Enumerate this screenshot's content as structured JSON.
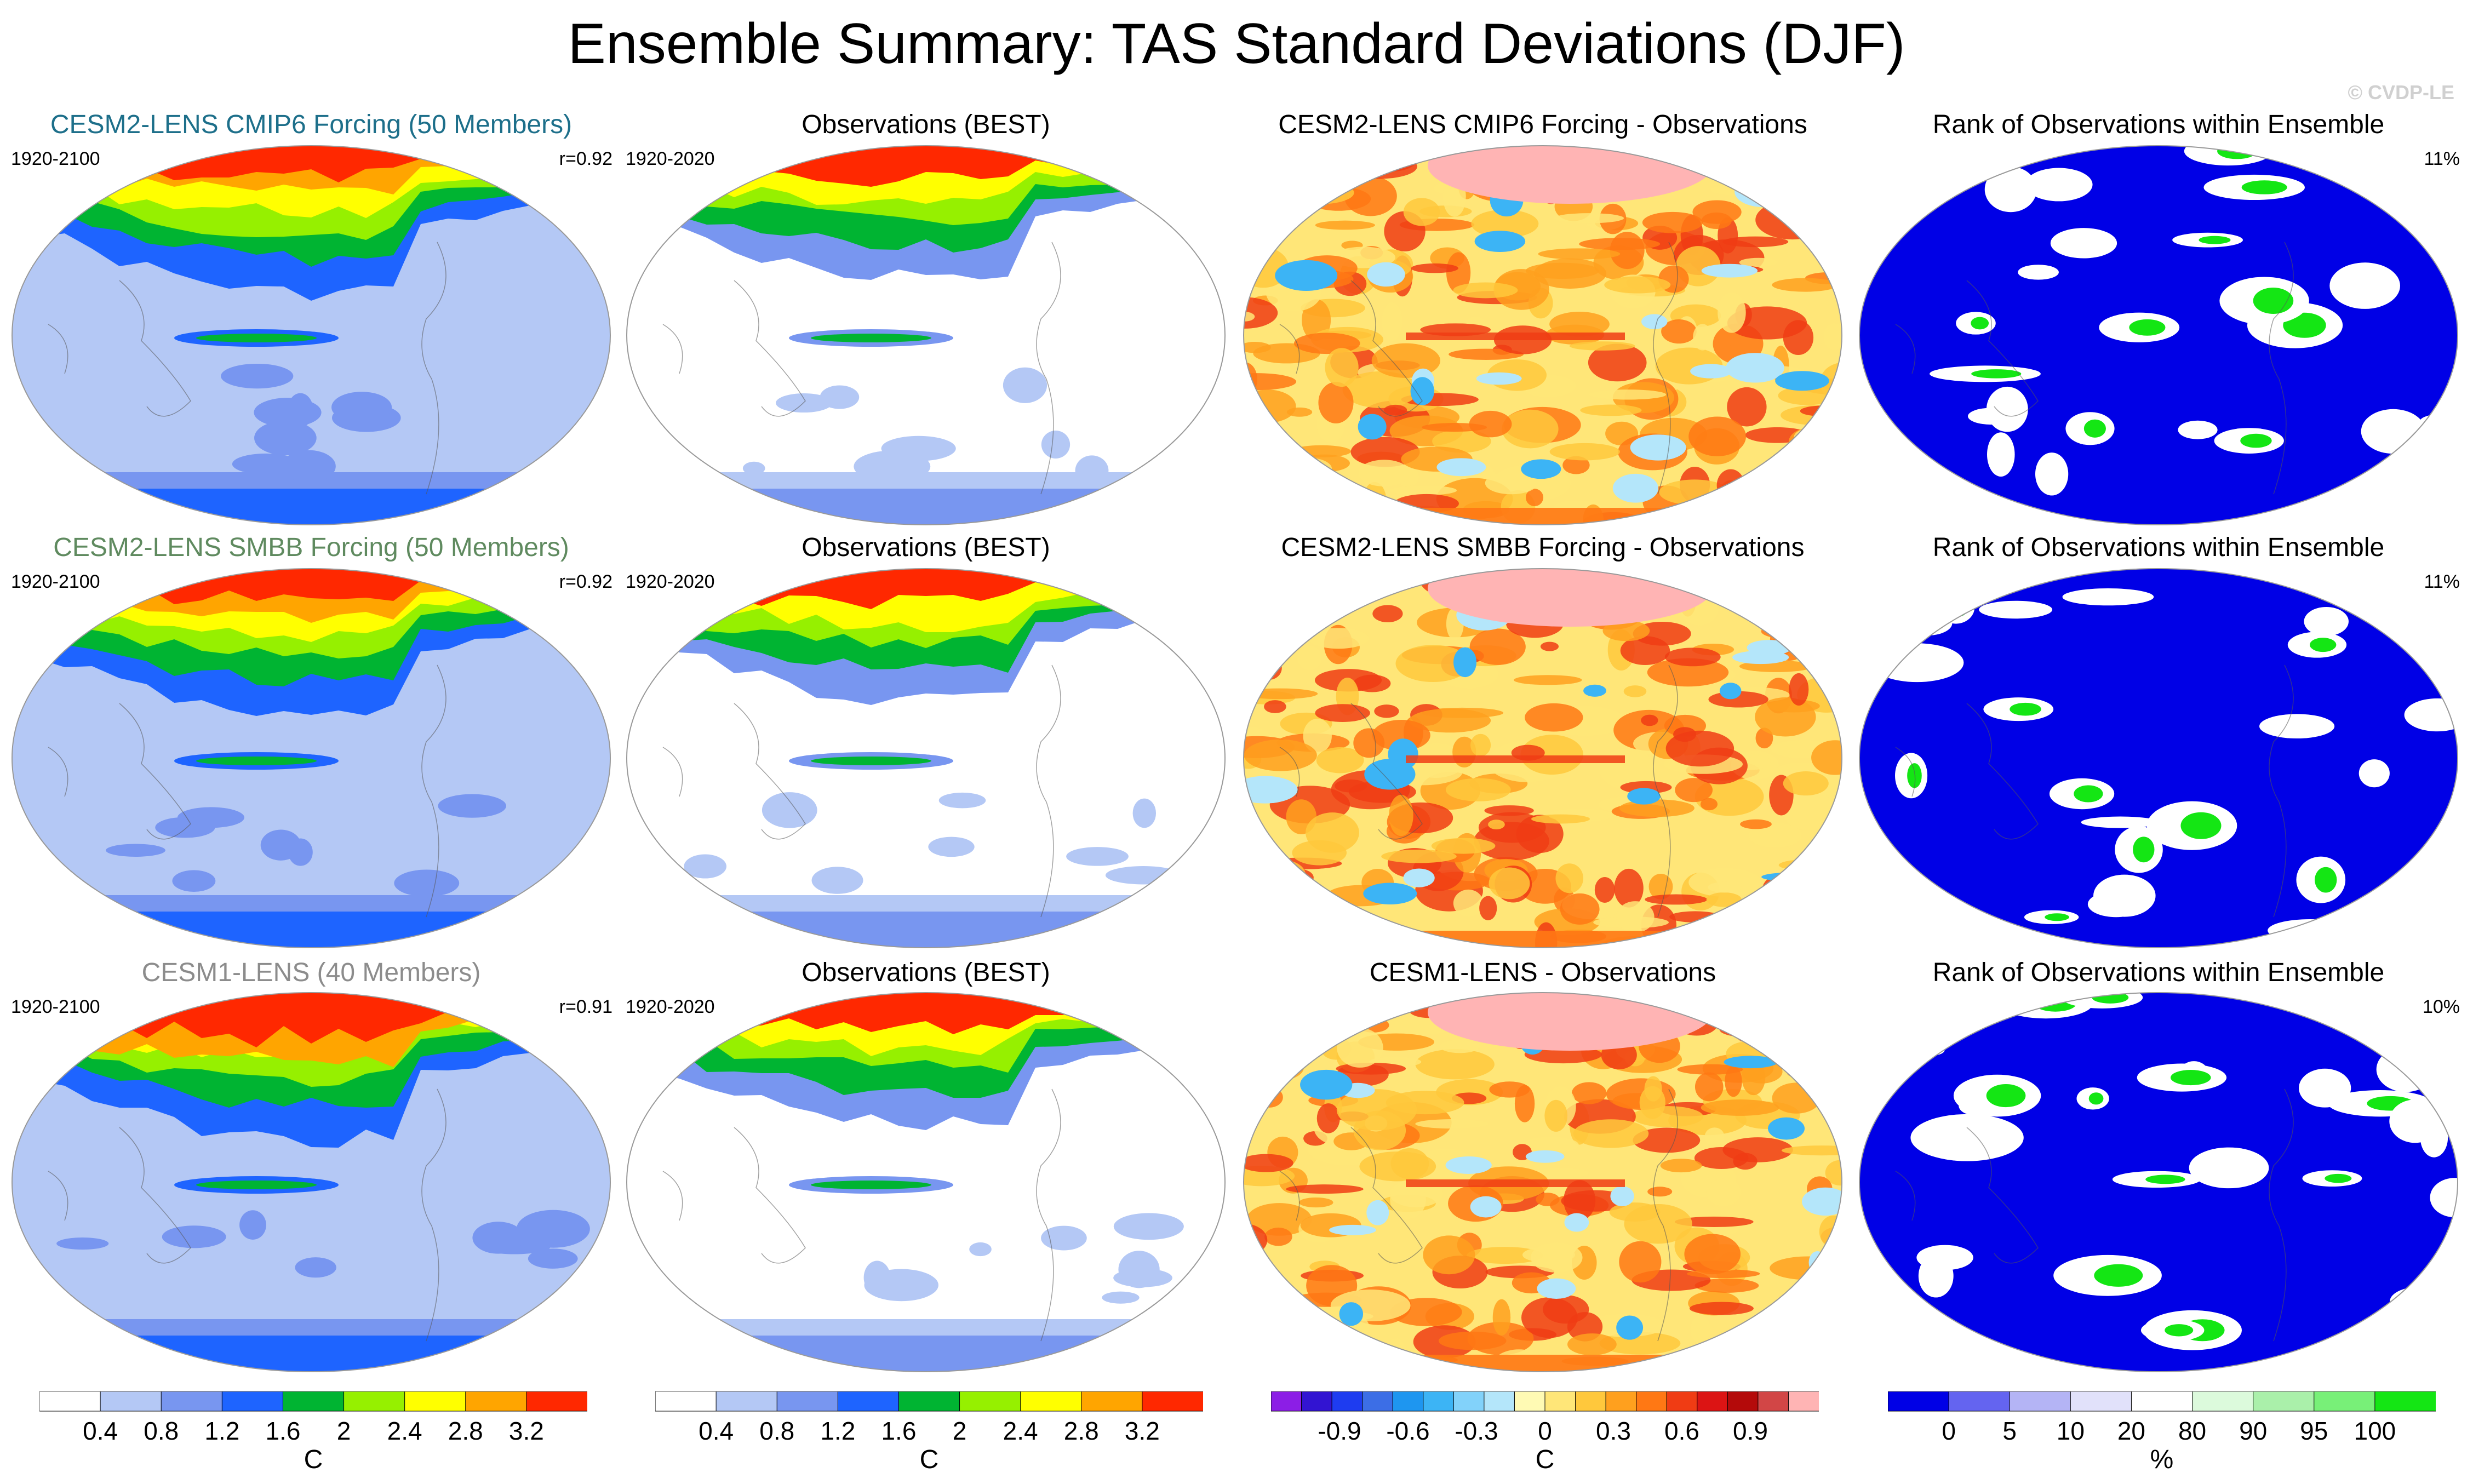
{
  "title": "Ensemble Summary: TAS Standard Deviations (DJF)",
  "watermark": "© CVDP-LE",
  "rows": [
    {
      "model": {
        "title": "CESM2-LENS CMIP6 Forcing (50 Members)",
        "title_color": "#1d6f8a",
        "period": "1920-2100",
        "stat": "r=0.92"
      },
      "obs": {
        "title": "Observations (BEST)",
        "period": "1920-2020"
      },
      "diff": {
        "title": "CESM2-LENS CMIP6 Forcing - Observations"
      },
      "rank": {
        "title": "Rank of Observations within Ensemble",
        "stat": "11%"
      }
    },
    {
      "model": {
        "title": "CESM2-LENS SMBB Forcing (50 Members)",
        "title_color": "#5f8a5f",
        "period": "1920-2100",
        "stat": "r=0.92"
      },
      "obs": {
        "title": "Observations (BEST)",
        "period": "1920-2020"
      },
      "diff": {
        "title": "CESM2-LENS SMBB Forcing - Observations"
      },
      "rank": {
        "title": "Rank of Observations within Ensemble",
        "stat": "11%"
      }
    },
    {
      "model": {
        "title": "CESM1-LENS (40 Members)",
        "title_color": "#8c8c8c",
        "period": "1920-2100",
        "stat": "r=0.91"
      },
      "obs": {
        "title": "Observations (BEST)",
        "period": "1920-2020"
      },
      "diff": {
        "title": "CESM1-LENS - Observations"
      },
      "rank": {
        "title": "Rank of Observations within Ensemble",
        "stat": "10%"
      }
    }
  ],
  "colorbars": [
    {
      "unit": "C",
      "ticks": [
        "0.4",
        "0.8",
        "1.2",
        "1.6",
        "2",
        "2.4",
        "2.8",
        "3.2"
      ],
      "colors": [
        "#ffffff",
        "#b4c8f5",
        "#7896f0",
        "#1e64ff",
        "#00b432",
        "#96f000",
        "#ffff00",
        "#ffa500",
        "#ff2800"
      ]
    },
    {
      "unit": "C",
      "ticks": [
        "0.4",
        "0.8",
        "1.2",
        "1.6",
        "2",
        "2.4",
        "2.8",
        "3.2"
      ],
      "colors": [
        "#ffffff",
        "#b4c8f5",
        "#7896f0",
        "#1e64ff",
        "#00b432",
        "#96f000",
        "#ffff00",
        "#ffa500",
        "#ff2800"
      ]
    },
    {
      "unit": "C",
      "ticks": [
        "-0.9",
        "-0.6",
        "-0.3",
        "0",
        "0.3",
        "0.6",
        "0.9"
      ],
      "colors": [
        "#8c1ee6",
        "#3214d2",
        "#1e3cf0",
        "#3c6ee6",
        "#1e96f0",
        "#3cb4f5",
        "#82d2fa",
        "#b4e6fa",
        "#fffab4",
        "#ffe678",
        "#ffc83c",
        "#ffa01e",
        "#ff7814",
        "#f03c14",
        "#dc1414",
        "#b40a0a",
        "#d24646",
        "#ffb4b4"
      ]
    },
    {
      "unit": "%",
      "ticks": [
        "0",
        "5",
        "10",
        "20",
        "80",
        "90",
        "95",
        "100"
      ],
      "colors": [
        "#0000e6",
        "#6464f0",
        "#b4b4f5",
        "#e1e1fa",
        "#ffffff",
        "#dcfadc",
        "#aaf0aa",
        "#78f078",
        "#14e614"
      ]
    }
  ],
  "map_palettes": {
    "model": [
      "#b4c8f5",
      "#7896f0",
      "#1e64ff",
      "#00b432",
      "#96f000",
      "#ffff00",
      "#ffa500",
      "#ff2800"
    ],
    "obs": [
      "#ffffff",
      "#b4c8f5",
      "#7896f0",
      "#00b432",
      "#96f000",
      "#ffff00",
      "#ff2800"
    ],
    "diff": [
      "#ffe678",
      "#ffc83c",
      "#ffa01e",
      "#ff7814",
      "#f03c14",
      "#ffb4b4",
      "#b4e6fa",
      "#3cb4f5",
      "#fffab4"
    ],
    "rank": [
      "#0000e6",
      "#ffffff",
      "#14e614"
    ]
  }
}
